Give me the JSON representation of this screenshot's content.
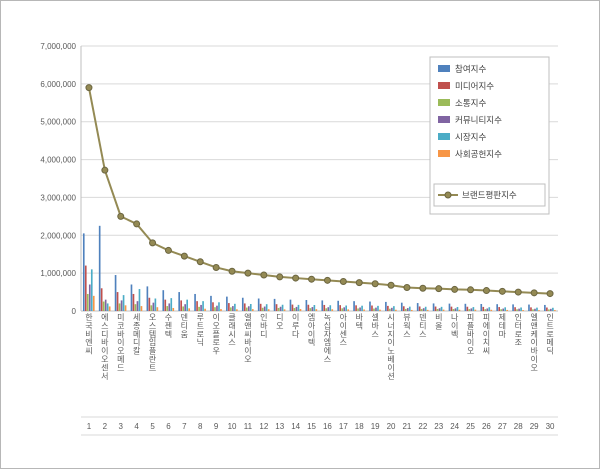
{
  "chart_data": {
    "type": "bar",
    "subtype": "grouped-bars-with-line",
    "title": "",
    "categories": [
      "한국비엔씨",
      "에스디바이오센서",
      "미코바이오메드",
      "세종메디칼",
      "오스템임플란트",
      "수젠텍",
      "덴티움",
      "루트로닉",
      "이오플로우",
      "클래시스",
      "엘앤씨바이오",
      "인바디",
      "디오",
      "이루다",
      "엠아이텍",
      "녹십자엠에스",
      "아이센스",
      "바텍",
      "셀바스",
      "시너지이노베이션",
      "뷰웍스",
      "덴티스",
      "비올",
      "나이벡",
      "피플바이오",
      "피에이치씨",
      "제테마",
      "인터로조",
      "엘앤케이바이오",
      "인트로메딕"
    ],
    "ranks": [
      "1",
      "2",
      "3",
      "4",
      "5",
      "6",
      "7",
      "8",
      "9",
      "10",
      "11",
      "12",
      "13",
      "14",
      "15",
      "16",
      "17",
      "18",
      "19",
      "20",
      "21",
      "22",
      "23",
      "24",
      "25",
      "26",
      "27",
      "28",
      "29",
      "30"
    ],
    "series": [
      {
        "name": "참여지수",
        "key": "participation",
        "color": "#4F81BD",
        "values": [
          2050000,
          2250000,
          950000,
          700000,
          650000,
          550000,
          500000,
          450000,
          400000,
          380000,
          350000,
          330000,
          320000,
          300000,
          290000,
          280000,
          270000,
          260000,
          250000,
          240000,
          220000,
          210000,
          200000,
          195000,
          190000,
          185000,
          180000,
          175000,
          170000,
          160000
        ]
      },
      {
        "name": "미디어지수",
        "key": "media",
        "color": "#C0504D",
        "values": [
          1200000,
          600000,
          500000,
          450000,
          350000,
          300000,
          280000,
          260000,
          230000,
          210000,
          200000,
          190000,
          180000,
          170000,
          165000,
          160000,
          155000,
          150000,
          145000,
          135000,
          125000,
          120000,
          118000,
          115000,
          112000,
          108000,
          104000,
          100000,
          96000,
          92000
        ]
      },
      {
        "name": "소통지수",
        "key": "communication",
        "color": "#9BBB59",
        "values": [
          450000,
          250000,
          200000,
          180000,
          150000,
          130000,
          120000,
          110000,
          100000,
          95000,
          90000,
          85000,
          80000,
          78000,
          75000,
          72000,
          70000,
          67000,
          64000,
          60000,
          55000,
          54000,
          53000,
          51000,
          50000,
          48000,
          47000,
          45000,
          43000,
          41000
        ]
      },
      {
        "name": "커뮤니티지수",
        "key": "community",
        "color": "#8064A2",
        "values": [
          700000,
          300000,
          280000,
          260000,
          220000,
          200000,
          180000,
          160000,
          140000,
          130000,
          125000,
          118000,
          112000,
          108000,
          104000,
          100000,
          97000,
          93000,
          89000,
          84000,
          77000,
          74000,
          73000,
          70000,
          69000,
          67000,
          64000,
          62000,
          59000,
          57000
        ]
      },
      {
        "name": "시장지수",
        "key": "market",
        "color": "#4BACC6",
        "values": [
          1100000,
          200000,
          420000,
          580000,
          330000,
          340000,
          300000,
          260000,
          230000,
          190000,
          185000,
          180000,
          165000,
          162000,
          158000,
          152000,
          145000,
          140000,
          136000,
          128000,
          115000,
          112000,
          110000,
          106000,
          104000,
          100000,
          97000,
          93000,
          89000,
          85000
        ]
      },
      {
        "name": "사회공헌지수",
        "key": "social",
        "color": "#F79646",
        "values": [
          400000,
          120000,
          150000,
          130000,
          100000,
          80000,
          70000,
          60000,
          50000,
          45000,
          50000,
          47000,
          43000,
          52000,
          48000,
          46000,
          43000,
          40000,
          36000,
          33000,
          28000,
          30000,
          36000,
          33000,
          35000,
          32000,
          28000,
          25000,
          23000,
          25000
        ]
      }
    ],
    "line_series": {
      "name": "브랜드평판지수",
      "key": "brand-reputation",
      "color": "#948A54",
      "marker_border": "#6B6540",
      "values": [
        5900000,
        3720000,
        2500000,
        2300000,
        1800000,
        1600000,
        1450000,
        1300000,
        1150000,
        1050000,
        1000000,
        950000,
        900000,
        870000,
        840000,
        810000,
        780000,
        750000,
        720000,
        680000,
        620000,
        600000,
        590000,
        570000,
        560000,
        540000,
        520000,
        500000,
        480000,
        460000
      ]
    },
    "y_axis": {
      "min": 0,
      "max": 7000000,
      "step": 1000000,
      "tick_labels": [
        "0",
        "1,000,000",
        "2,000,000",
        "3,000,000",
        "4,000,000",
        "5,000,000",
        "6,000,000",
        "7,000,000"
      ]
    },
    "legend_position": "top-right",
    "grid": true,
    "colors": {
      "gridline": "#D9D9D9",
      "axis": "#BFBFBF",
      "tick_text": "#595959",
      "legend_text": "#404040",
      "legend_border": "#BFBFBF",
      "background": "#FFFFFF"
    }
  }
}
